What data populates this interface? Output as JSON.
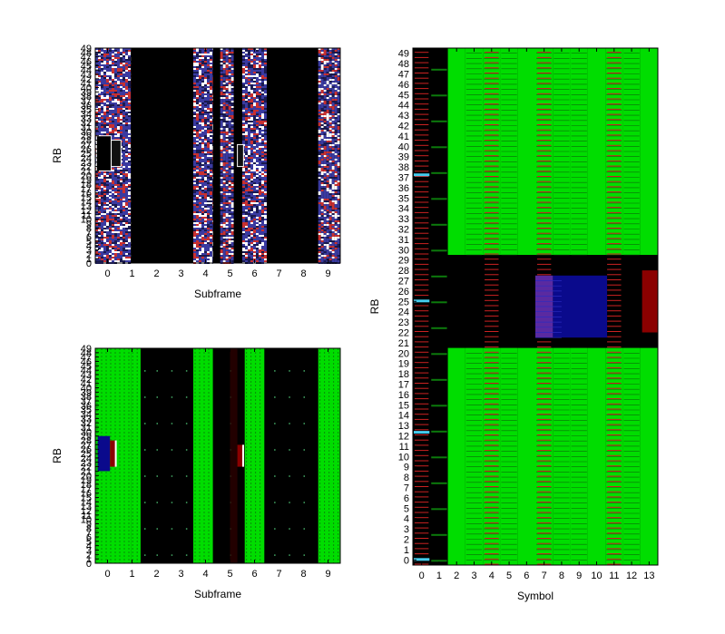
{
  "colors": {
    "background": "#000000",
    "pdsch": "#00dd00",
    "reference_signal": "#cc2222",
    "control_region": "#0a0a8c",
    "pss_sss": "#8b0000",
    "pbch": "#3366ff",
    "random_data_blue": "#3a3aa0",
    "random_data_white": "#ffffff",
    "random_data_red": "#c83030",
    "cyan_marker": "#44ccee"
  },
  "chart_data": [
    {
      "id": "top-left",
      "type": "heatmap",
      "xlabel": "Subframe",
      "ylabel": "RB",
      "xlim": [
        -0.5,
        9.5
      ],
      "ylim": [
        0,
        49
      ],
      "x_ticks": [
        0,
        1,
        2,
        3,
        4,
        5,
        6,
        7,
        8,
        9
      ],
      "y_ticks": [
        0,
        1,
        2,
        3,
        4,
        5,
        6,
        7,
        8,
        9,
        10,
        11,
        12,
        13,
        14,
        15,
        16,
        17,
        18,
        19,
        20,
        21,
        22,
        23,
        24,
        25,
        26,
        27,
        28,
        29,
        30,
        31,
        32,
        33,
        34,
        35,
        36,
        37,
        38,
        39,
        40,
        41,
        42,
        43,
        44,
        45,
        46,
        47,
        48,
        49
      ],
      "content": "random",
      "random_subframe_ranges": [
        [
          -0.5,
          0.95
        ],
        [
          3.5,
          4.3
        ],
        [
          4.6,
          5.15
        ],
        [
          5.5,
          6.5
        ],
        [
          8.6,
          9.5
        ]
      ],
      "black_subframe_ranges": [
        [
          0.95,
          1.5
        ],
        [
          1.5,
          3.5
        ],
        [
          6.5,
          8.6
        ]
      ]
    },
    {
      "id": "bottom-left",
      "type": "heatmap",
      "xlabel": "Subframe",
      "ylabel": "RB",
      "xlim": [
        -0.5,
        9.5
      ],
      "ylim": [
        0,
        49
      ],
      "x_ticks": [
        0,
        1,
        2,
        3,
        4,
        5,
        6,
        7,
        8,
        9
      ],
      "y_ticks": [
        0,
        1,
        2,
        3,
        4,
        5,
        6,
        7,
        8,
        9,
        10,
        11,
        12,
        13,
        14,
        15,
        16,
        17,
        18,
        19,
        20,
        21,
        22,
        23,
        24,
        25,
        26,
        27,
        28,
        29,
        30,
        31,
        32,
        33,
        34,
        35,
        36,
        37,
        38,
        39,
        40,
        41,
        42,
        43,
        44,
        45,
        46,
        47,
        48,
        49
      ],
      "content": "resource-grid",
      "pdsch_subframe_ranges": [
        [
          -0.5,
          0.95
        ],
        [
          0.95,
          1.35
        ],
        [
          3.5,
          4.3
        ],
        [
          5.6,
          6.4
        ],
        [
          8.6,
          9.5
        ]
      ],
      "black_subframe_ranges": [
        [
          1.35,
          3.5
        ],
        [
          4.3,
          5.6
        ],
        [
          6.4,
          8.6
        ]
      ]
    },
    {
      "id": "right",
      "type": "heatmap",
      "xlabel": "Symbol",
      "ylabel": "RB",
      "xlim": [
        -0.5,
        13.5
      ],
      "ylim": [
        -0.5,
        49.5
      ],
      "x_ticks": [
        0,
        1,
        2,
        3,
        4,
        5,
        6,
        7,
        8,
        9,
        10,
        11,
        12,
        13
      ],
      "y_ticks": [
        0,
        1,
        2,
        3,
        4,
        5,
        6,
        7,
        8,
        9,
        10,
        11,
        12,
        13,
        14,
        15,
        16,
        17,
        18,
        19,
        20,
        21,
        22,
        23,
        24,
        25,
        26,
        27,
        28,
        29,
        30,
        31,
        32,
        33,
        34,
        35,
        36,
        37,
        38,
        39,
        40,
        41,
        42,
        43,
        44,
        45,
        46,
        47,
        48,
        49
      ],
      "control_symbols": [
        0,
        1
      ],
      "reference_signal_symbols": [
        0,
        4,
        7,
        11
      ],
      "pdsch_symbols": [
        2,
        3,
        4,
        5,
        6,
        7,
        8,
        9,
        10,
        11,
        12,
        13
      ],
      "center_block_rb_range": [
        20.5,
        29.5
      ],
      "pss_sss_region": {
        "symbols": [
          12.6,
          13.5
        ],
        "rb": [
          22,
          28
        ]
      },
      "pbch_region": {
        "symbols": [
          7.5,
          10.6
        ],
        "rb": [
          21.5,
          27.5
        ]
      }
    }
  ]
}
